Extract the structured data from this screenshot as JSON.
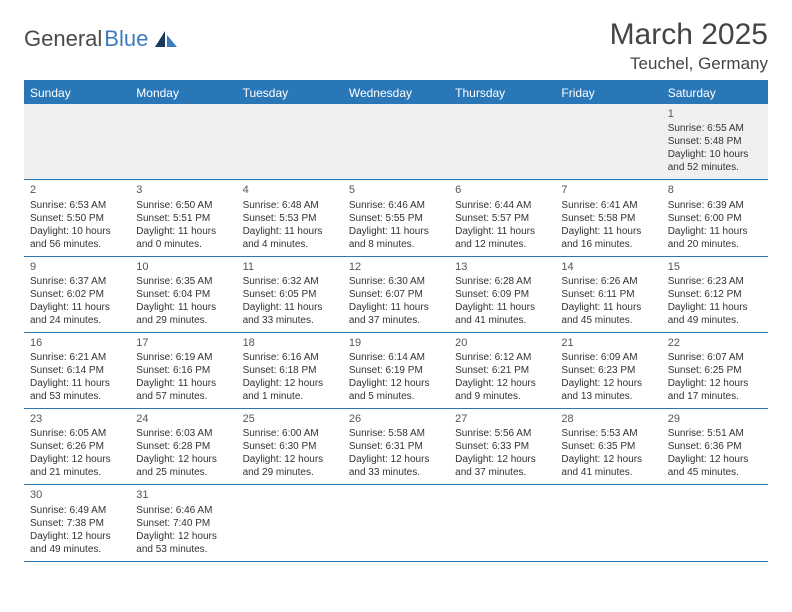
{
  "logo": {
    "textDark": "General",
    "textBlue": "Blue"
  },
  "title": "March 2025",
  "location": "Teuchel, Germany",
  "weekdays": [
    "Sunday",
    "Monday",
    "Tuesday",
    "Wednesday",
    "Thursday",
    "Friday",
    "Saturday"
  ],
  "colors": {
    "accent": "#2a77b8",
    "headerBg": "#2a77b8",
    "firstRowBg": "#f0f0f0",
    "text": "#333333",
    "titleText": "#444444"
  },
  "layout": {
    "columns": 7,
    "rows": 6,
    "cellFontSize": 10,
    "headerFontSize": 12
  },
  "weeks": [
    [
      {
        "empty": true
      },
      {
        "empty": true
      },
      {
        "empty": true
      },
      {
        "empty": true
      },
      {
        "empty": true
      },
      {
        "empty": true
      },
      {
        "day": "1",
        "sunrise": "Sunrise: 6:55 AM",
        "sunset": "Sunset: 5:48 PM",
        "daylight": "Daylight: 10 hours and 52 minutes."
      }
    ],
    [
      {
        "day": "2",
        "sunrise": "Sunrise: 6:53 AM",
        "sunset": "Sunset: 5:50 PM",
        "daylight": "Daylight: 10 hours and 56 minutes."
      },
      {
        "day": "3",
        "sunrise": "Sunrise: 6:50 AM",
        "sunset": "Sunset: 5:51 PM",
        "daylight": "Daylight: 11 hours and 0 minutes."
      },
      {
        "day": "4",
        "sunrise": "Sunrise: 6:48 AM",
        "sunset": "Sunset: 5:53 PM",
        "daylight": "Daylight: 11 hours and 4 minutes."
      },
      {
        "day": "5",
        "sunrise": "Sunrise: 6:46 AM",
        "sunset": "Sunset: 5:55 PM",
        "daylight": "Daylight: 11 hours and 8 minutes."
      },
      {
        "day": "6",
        "sunrise": "Sunrise: 6:44 AM",
        "sunset": "Sunset: 5:57 PM",
        "daylight": "Daylight: 11 hours and 12 minutes."
      },
      {
        "day": "7",
        "sunrise": "Sunrise: 6:41 AM",
        "sunset": "Sunset: 5:58 PM",
        "daylight": "Daylight: 11 hours and 16 minutes."
      },
      {
        "day": "8",
        "sunrise": "Sunrise: 6:39 AM",
        "sunset": "Sunset: 6:00 PM",
        "daylight": "Daylight: 11 hours and 20 minutes."
      }
    ],
    [
      {
        "day": "9",
        "sunrise": "Sunrise: 6:37 AM",
        "sunset": "Sunset: 6:02 PM",
        "daylight": "Daylight: 11 hours and 24 minutes."
      },
      {
        "day": "10",
        "sunrise": "Sunrise: 6:35 AM",
        "sunset": "Sunset: 6:04 PM",
        "daylight": "Daylight: 11 hours and 29 minutes."
      },
      {
        "day": "11",
        "sunrise": "Sunrise: 6:32 AM",
        "sunset": "Sunset: 6:05 PM",
        "daylight": "Daylight: 11 hours and 33 minutes."
      },
      {
        "day": "12",
        "sunrise": "Sunrise: 6:30 AM",
        "sunset": "Sunset: 6:07 PM",
        "daylight": "Daylight: 11 hours and 37 minutes."
      },
      {
        "day": "13",
        "sunrise": "Sunrise: 6:28 AM",
        "sunset": "Sunset: 6:09 PM",
        "daylight": "Daylight: 11 hours and 41 minutes."
      },
      {
        "day": "14",
        "sunrise": "Sunrise: 6:26 AM",
        "sunset": "Sunset: 6:11 PM",
        "daylight": "Daylight: 11 hours and 45 minutes."
      },
      {
        "day": "15",
        "sunrise": "Sunrise: 6:23 AM",
        "sunset": "Sunset: 6:12 PM",
        "daylight": "Daylight: 11 hours and 49 minutes."
      }
    ],
    [
      {
        "day": "16",
        "sunrise": "Sunrise: 6:21 AM",
        "sunset": "Sunset: 6:14 PM",
        "daylight": "Daylight: 11 hours and 53 minutes."
      },
      {
        "day": "17",
        "sunrise": "Sunrise: 6:19 AM",
        "sunset": "Sunset: 6:16 PM",
        "daylight": "Daylight: 11 hours and 57 minutes."
      },
      {
        "day": "18",
        "sunrise": "Sunrise: 6:16 AM",
        "sunset": "Sunset: 6:18 PM",
        "daylight": "Daylight: 12 hours and 1 minute."
      },
      {
        "day": "19",
        "sunrise": "Sunrise: 6:14 AM",
        "sunset": "Sunset: 6:19 PM",
        "daylight": "Daylight: 12 hours and 5 minutes."
      },
      {
        "day": "20",
        "sunrise": "Sunrise: 6:12 AM",
        "sunset": "Sunset: 6:21 PM",
        "daylight": "Daylight: 12 hours and 9 minutes."
      },
      {
        "day": "21",
        "sunrise": "Sunrise: 6:09 AM",
        "sunset": "Sunset: 6:23 PM",
        "daylight": "Daylight: 12 hours and 13 minutes."
      },
      {
        "day": "22",
        "sunrise": "Sunrise: 6:07 AM",
        "sunset": "Sunset: 6:25 PM",
        "daylight": "Daylight: 12 hours and 17 minutes."
      }
    ],
    [
      {
        "day": "23",
        "sunrise": "Sunrise: 6:05 AM",
        "sunset": "Sunset: 6:26 PM",
        "daylight": "Daylight: 12 hours and 21 minutes."
      },
      {
        "day": "24",
        "sunrise": "Sunrise: 6:03 AM",
        "sunset": "Sunset: 6:28 PM",
        "daylight": "Daylight: 12 hours and 25 minutes."
      },
      {
        "day": "25",
        "sunrise": "Sunrise: 6:00 AM",
        "sunset": "Sunset: 6:30 PM",
        "daylight": "Daylight: 12 hours and 29 minutes."
      },
      {
        "day": "26",
        "sunrise": "Sunrise: 5:58 AM",
        "sunset": "Sunset: 6:31 PM",
        "daylight": "Daylight: 12 hours and 33 minutes."
      },
      {
        "day": "27",
        "sunrise": "Sunrise: 5:56 AM",
        "sunset": "Sunset: 6:33 PM",
        "daylight": "Daylight: 12 hours and 37 minutes."
      },
      {
        "day": "28",
        "sunrise": "Sunrise: 5:53 AM",
        "sunset": "Sunset: 6:35 PM",
        "daylight": "Daylight: 12 hours and 41 minutes."
      },
      {
        "day": "29",
        "sunrise": "Sunrise: 5:51 AM",
        "sunset": "Sunset: 6:36 PM",
        "daylight": "Daylight: 12 hours and 45 minutes."
      }
    ],
    [
      {
        "day": "30",
        "sunrise": "Sunrise: 6:49 AM",
        "sunset": "Sunset: 7:38 PM",
        "daylight": "Daylight: 12 hours and 49 minutes."
      },
      {
        "day": "31",
        "sunrise": "Sunrise: 6:46 AM",
        "sunset": "Sunset: 7:40 PM",
        "daylight": "Daylight: 12 hours and 53 minutes."
      },
      {
        "empty": true
      },
      {
        "empty": true
      },
      {
        "empty": true
      },
      {
        "empty": true
      },
      {
        "empty": true
      }
    ]
  ]
}
